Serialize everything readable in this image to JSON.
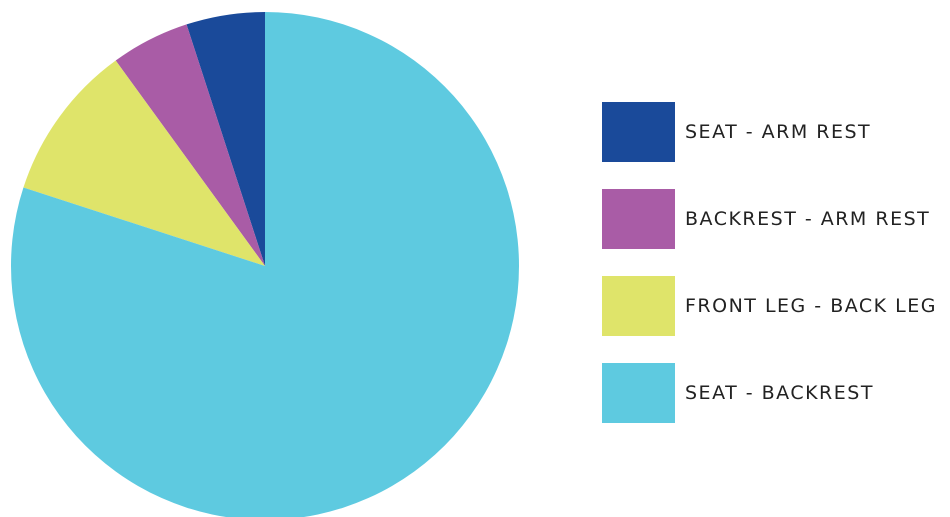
{
  "chart_data": {
    "type": "pie",
    "title": "",
    "start": "12 o'clock",
    "direction": "counter-clockwise",
    "legend_position": "right",
    "slices": [
      {
        "label": "SEAT - ARM REST",
        "value": 5,
        "color": "#1a4a9a"
      },
      {
        "label": "BACKREST - ARM REST",
        "value": 5,
        "color": "#a95ca6"
      },
      {
        "label": "FRONT LEG - BACK LEG",
        "value": 10,
        "color": "#dfe46a"
      },
      {
        "label": "SEAT - BACKREST",
        "value": 80,
        "color": "#5ecae0"
      }
    ]
  }
}
